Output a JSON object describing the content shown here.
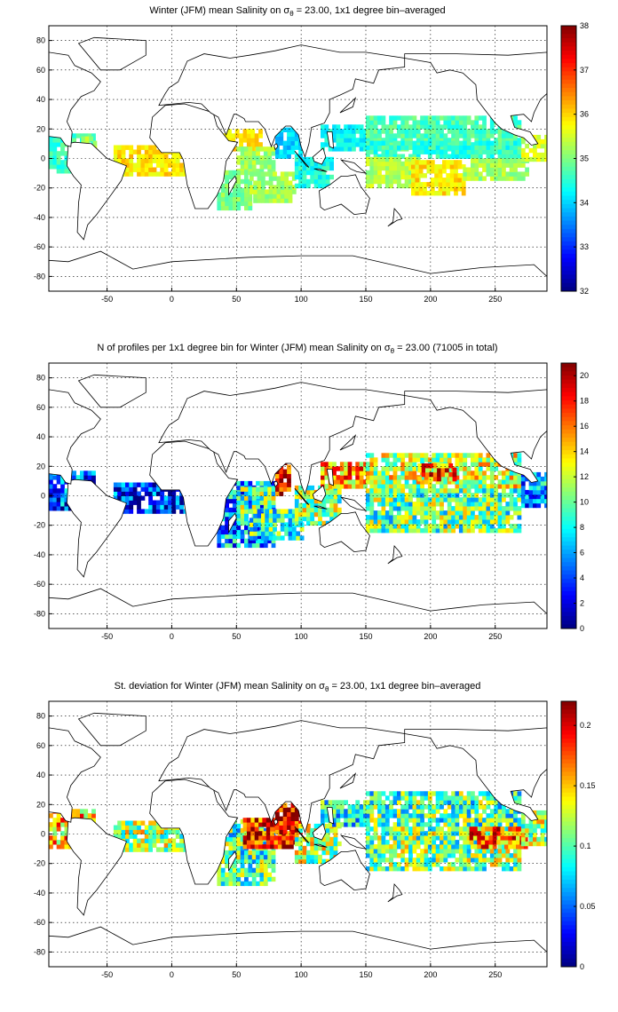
{
  "colors": {
    "colormap": "jet",
    "land_outline": "#000000",
    "grid": "#000000",
    "background": "#ffffff"
  },
  "chart_data": [
    {
      "type": "heatmap",
      "title_prefix": "Winter (JFM) mean Salinity on",
      "title_symbol": "σ",
      "title_subscript": "θ",
      "title_suffix": "= 23.00, 1x1 degree bin–averaged",
      "xlim": [
        -95,
        290
      ],
      "ylim": [
        -90,
        90
      ],
      "xticks": [
        -50,
        0,
        50,
        100,
        150,
        200,
        250
      ],
      "yticks": [
        -80,
        -60,
        -40,
        -20,
        0,
        20,
        40,
        60,
        80
      ],
      "grid": true,
      "colorbar": {
        "min": 32,
        "max": 38,
        "ticks": [
          32,
          33,
          34,
          35,
          36,
          37,
          38
        ]
      },
      "regions": [
        {
          "lon": [
            -95,
            -60
          ],
          "lat": [
            -10,
            16
          ],
          "value": 34.6
        },
        {
          "lon": [
            -70,
            -60
          ],
          "lat": [
            0,
            15
          ],
          "value": 35.4
        },
        {
          "lon": [
            -45,
            10
          ],
          "lat": [
            -12,
            8
          ],
          "value": 35.9
        },
        {
          "lon": [
            40,
            70
          ],
          "lat": [
            5,
            20
          ],
          "value": 36.0
        },
        {
          "lon": [
            50,
            80
          ],
          "lat": [
            -10,
            8
          ],
          "value": 35.2
        },
        {
          "lon": [
            35,
            60
          ],
          "lat": [
            -35,
            -10
          ],
          "value": 35.0
        },
        {
          "lon": [
            60,
            95
          ],
          "lat": [
            -30,
            -10
          ],
          "value": 35.2
        },
        {
          "lon": [
            80,
            100
          ],
          "lat": [
            0,
            20
          ],
          "value": 34.0
        },
        {
          "lon": [
            95,
            125
          ],
          "lat": [
            -20,
            0
          ],
          "value": 34.4
        },
        {
          "lon": [
            115,
            150
          ],
          "lat": [
            5,
            22
          ],
          "value": 34.3
        },
        {
          "lon": [
            150,
            270
          ],
          "lat": [
            5,
            28
          ],
          "value": 34.7
        },
        {
          "lon": [
            150,
            270
          ],
          "lat": [
            0,
            10
          ],
          "value": 34.5
        },
        {
          "lon": [
            150,
            190
          ],
          "lat": [
            -20,
            0
          ],
          "value": 35.3
        },
        {
          "lon": [
            185,
            225
          ],
          "lat": [
            -25,
            -3
          ],
          "value": 35.9
        },
        {
          "lon": [
            225,
            275
          ],
          "lat": [
            -15,
            0
          ],
          "value": 35.2
        },
        {
          "lon": [
            270,
            290
          ],
          "lat": [
            -2,
            15
          ],
          "value": 35.5
        }
      ]
    },
    {
      "type": "heatmap",
      "title_prefix": "N of profiles per 1x1 degree bin for Winter (JFM) mean Salinity on",
      "title_symbol": "σ",
      "title_subscript": "θ",
      "title_suffix": "= 23.00 (71005 in total)",
      "xlim": [
        -95,
        290
      ],
      "ylim": [
        -90,
        90
      ],
      "xticks": [
        -50,
        0,
        50,
        100,
        150,
        200,
        250
      ],
      "yticks": [
        -80,
        -60,
        -40,
        -20,
        0,
        20,
        40,
        60,
        80
      ],
      "grid": true,
      "colorbar": {
        "min": 0,
        "max": 21,
        "ticks": [
          0,
          2,
          4,
          6,
          8,
          10,
          12,
          14,
          16,
          18,
          20
        ]
      },
      "regions": [
        {
          "lon": [
            -95,
            -60
          ],
          "lat": [
            -10,
            16
          ],
          "value": 4
        },
        {
          "lon": [
            -45,
            10
          ],
          "lat": [
            -12,
            8
          ],
          "value": 3
        },
        {
          "lon": [
            35,
            80
          ],
          "lat": [
            -35,
            10
          ],
          "value": 6
        },
        {
          "lon": [
            50,
            80
          ],
          "lat": [
            -15,
            5
          ],
          "value": 10
        },
        {
          "lon": [
            80,
            92
          ],
          "lat": [
            0,
            22
          ],
          "value": 19
        },
        {
          "lon": [
            60,
            100
          ],
          "lat": [
            -30,
            -10
          ],
          "value": 9
        },
        {
          "lon": [
            95,
            130
          ],
          "lat": [
            -20,
            5
          ],
          "value": 11
        },
        {
          "lon": [
            115,
            150
          ],
          "lat": [
            5,
            22
          ],
          "value": 15
        },
        {
          "lon": [
            150,
            270
          ],
          "lat": [
            5,
            28
          ],
          "value": 12
        },
        {
          "lon": [
            150,
            270
          ],
          "lat": [
            -25,
            5
          ],
          "value": 10
        },
        {
          "lon": [
            190,
            220
          ],
          "lat": [
            10,
            20
          ],
          "value": 16
        },
        {
          "lon": [
            270,
            290
          ],
          "lat": [
            -8,
            15
          ],
          "value": 6
        }
      ]
    },
    {
      "type": "heatmap",
      "title_prefix": "St. deviation for Winter (JFM) mean Salinity on",
      "title_symbol": "σ",
      "title_subscript": "θ",
      "title_suffix": "= 23.00, 1x1 degree bin–averaged",
      "xlim": [
        -95,
        290
      ],
      "ylim": [
        -90,
        90
      ],
      "xticks": [
        -50,
        0,
        50,
        100,
        150,
        200,
        250
      ],
      "yticks": [
        -80,
        -60,
        -40,
        -20,
        0,
        20,
        40,
        60,
        80
      ],
      "grid": true,
      "colorbar": {
        "min": 0,
        "max": 0.22,
        "ticks": [
          0,
          0.05,
          0.1,
          0.15,
          0.2
        ]
      },
      "regions": [
        {
          "lon": [
            -95,
            -60
          ],
          "lat": [
            -10,
            16
          ],
          "value": 0.15
        },
        {
          "lon": [
            -45,
            10
          ],
          "lat": [
            -12,
            8
          ],
          "value": 0.12
        },
        {
          "lon": [
            35,
            80
          ],
          "lat": [
            -35,
            10
          ],
          "value": 0.1
        },
        {
          "lon": [
            55,
            95
          ],
          "lat": [
            -10,
            10
          ],
          "value": 0.19
        },
        {
          "lon": [
            80,
            100
          ],
          "lat": [
            0,
            20
          ],
          "value": 0.2
        },
        {
          "lon": [
            95,
            130
          ],
          "lat": [
            -20,
            5
          ],
          "value": 0.12
        },
        {
          "lon": [
            115,
            150
          ],
          "lat": [
            5,
            22
          ],
          "value": 0.09
        },
        {
          "lon": [
            150,
            270
          ],
          "lat": [
            5,
            28
          ],
          "value": 0.1
        },
        {
          "lon": [
            150,
            270
          ],
          "lat": [
            -25,
            5
          ],
          "value": 0.11
        },
        {
          "lon": [
            230,
            275
          ],
          "lat": [
            -10,
            5
          ],
          "value": 0.17
        },
        {
          "lon": [
            270,
            290
          ],
          "lat": [
            -8,
            15
          ],
          "value": 0.12
        }
      ]
    }
  ]
}
